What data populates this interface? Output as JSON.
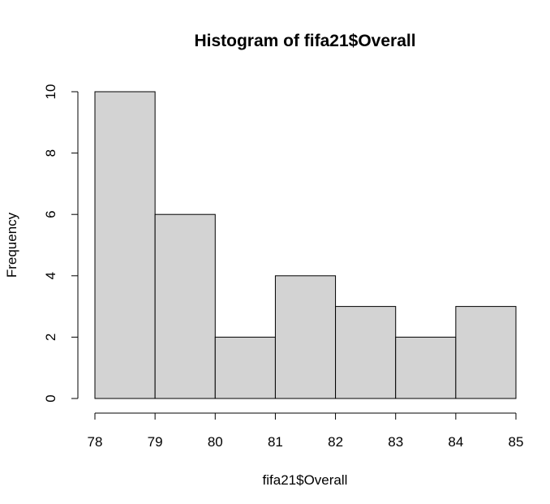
{
  "chart_data": {
    "type": "bar",
    "title": "Histogram of fifa21$Overall",
    "xlabel": "fifa21$Overall",
    "ylabel": "Frequency",
    "bins": [
      {
        "from": 78,
        "to": 79,
        "count": 10
      },
      {
        "from": 79,
        "to": 80,
        "count": 6
      },
      {
        "from": 80,
        "to": 81,
        "count": 2
      },
      {
        "from": 81,
        "to": 82,
        "count": 4
      },
      {
        "from": 82,
        "to": 83,
        "count": 3
      },
      {
        "from": 83,
        "to": 84,
        "count": 2
      },
      {
        "from": 84,
        "to": 85,
        "count": 3
      }
    ],
    "xticks": [
      "78",
      "79",
      "80",
      "81",
      "82",
      "83",
      "84",
      "85"
    ],
    "yticks": [
      "0",
      "2",
      "4",
      "6",
      "8",
      "10"
    ],
    "xlim": [
      78,
      85
    ],
    "ylim": [
      0,
      10
    ],
    "bar_color": "#d3d3d3",
    "grid": false,
    "legend": false
  }
}
